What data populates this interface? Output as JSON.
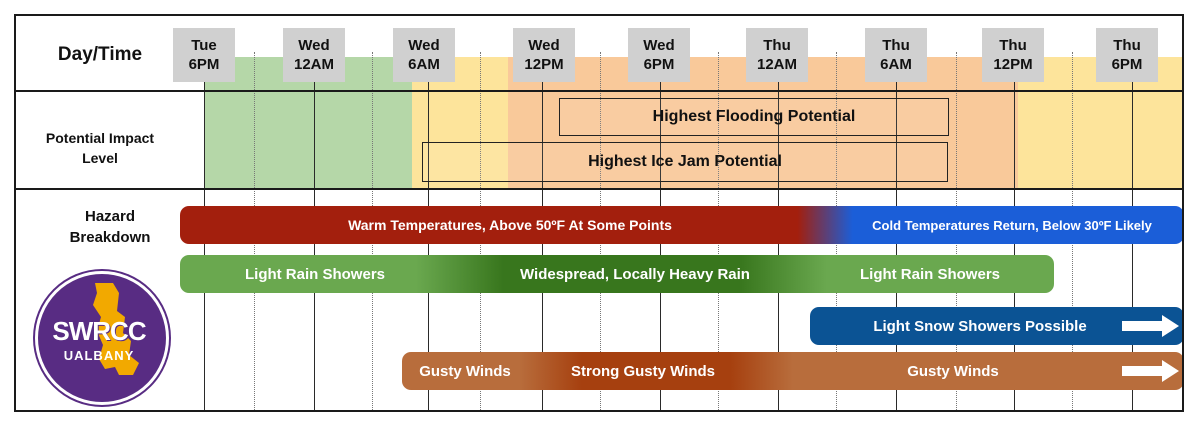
{
  "header": {
    "row_label": "Day/Time",
    "times": [
      {
        "day": "Tue",
        "time": "6PM"
      },
      {
        "day": "Wed",
        "time": "12AM"
      },
      {
        "day": "Wed",
        "time": "6AM"
      },
      {
        "day": "Wed",
        "time": "12PM"
      },
      {
        "day": "Wed",
        "time": "6PM"
      },
      {
        "day": "Thu",
        "time": "12AM"
      },
      {
        "day": "Thu",
        "time": "6AM"
      },
      {
        "day": "Thu",
        "time": "12PM"
      },
      {
        "day": "Thu",
        "time": "6PM"
      }
    ]
  },
  "impact": {
    "row_label": "Potential Impact Level",
    "zones": [
      {
        "level": "low",
        "color": "#b5d7a8"
      },
      {
        "level": "moderate",
        "color": "#fde49b"
      },
      {
        "level": "elevated",
        "color": "#f9c99a"
      },
      {
        "level": "moderate",
        "color": "#fde49b"
      }
    ],
    "boxes": {
      "flooding": "Highest Flooding Potential",
      "ice_jam": "Highest Ice Jam Potential"
    }
  },
  "hazards": {
    "row_label": "Hazard Breakdown",
    "temperature": {
      "warm": "Warm Temperatures, Above 50ºF At Some Points",
      "cold": "Cold Temperatures Return, Below 30ºF Likely",
      "warm_color": "#a31f0d",
      "cold_color": "#1b5ed8"
    },
    "rain": {
      "light_1": "Light Rain Showers",
      "heavy": "Widespread, Locally Heavy Rain",
      "light_2": "Light Rain Showers",
      "light_color": "#6aa84f",
      "heavy_color": "#38761d"
    },
    "snow": {
      "label": "Light Snow Showers Possible",
      "color": "#0b5394"
    },
    "wind": {
      "gusty_1": "Gusty Winds",
      "strong": "Strong Gusty Winds",
      "gusty_2": "Gusty Winds",
      "gusty_color": "#b86d3c",
      "strong_color": "#a6400f"
    }
  },
  "logo": {
    "line1": "SWRCC",
    "line2": "UALBANY",
    "bg_color": "#582c83",
    "accent_color": "#f2a900"
  }
}
